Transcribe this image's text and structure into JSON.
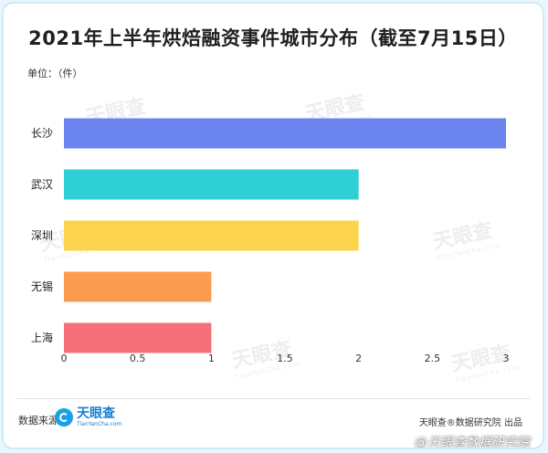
{
  "title": "2021年上半年烘焙融资事件城市分布（截至7月15日）",
  "unit_label": "单位：（件）",
  "watermark": {
    "name": "天眼查",
    "url": "TianYanCha.com"
  },
  "footer": {
    "source_label": "数据来源：",
    "brand_name": "天眼查",
    "brand_url": "TianYanCha.com",
    "publisher": "天眼查®数据研究院 出品"
  },
  "credit": "@天眼查数据研究院",
  "colors": {
    "brand": "#1a7fd0"
  },
  "chart_data": {
    "type": "bar",
    "orientation": "horizontal",
    "categories": [
      "长沙",
      "武汉",
      "深圳",
      "无锡",
      "上海"
    ],
    "values": [
      3,
      2,
      2,
      1,
      1
    ],
    "colors": [
      "#6b84ee",
      "#2fcfd6",
      "#fbd34c",
      "#fb9b50",
      "#f5707a"
    ],
    "xlim": [
      0,
      3
    ],
    "xticks": [
      "0",
      "0.5",
      "1",
      "1.5",
      "2",
      "2.5",
      "3"
    ],
    "grid": false,
    "legend": "none"
  }
}
